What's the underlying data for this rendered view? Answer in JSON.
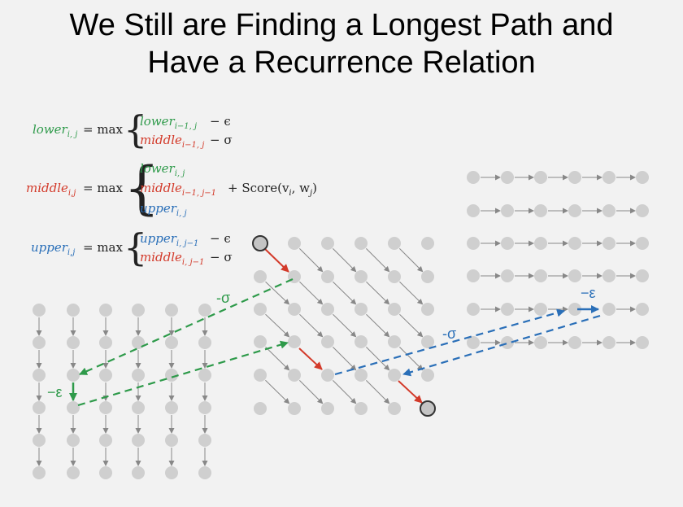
{
  "title": {
    "line1": "We Still are Finding a Longest Path and",
    "line2": "Have a Recurrence Relation"
  },
  "equations": {
    "lower": {
      "lhs": "lower",
      "lhs_sub": "i, j",
      "eq": "= max",
      "r1": "lower",
      "r1_sub": "i−1, j",
      "r1_tail": "− ϵ",
      "r2": "middle",
      "r2_sub": "i−1, j",
      "r2_tail": "− σ"
    },
    "middle": {
      "lhs": "middle",
      "lhs_sub": "i,j",
      "eq": "= max",
      "r1": "lower",
      "r1_sub": "i, j",
      "r2": "middle",
      "r2_sub": "i−1, j−1",
      "r2_tail": "+ Score(v",
      "r2_v": "i",
      "r2_mid": ", w",
      "r2_w": "j",
      "r2_end": ")",
      "r3": "upper",
      "r3_sub": "i, j"
    },
    "upper": {
      "lhs": "upper",
      "lhs_sub": "i,j",
      "eq": "= max",
      "r1": "upper",
      "r1_sub": "i, j−1",
      "r1_tail": "− ϵ",
      "r2": "middle",
      "r2_sub": "i, j−1",
      "r2_tail": "− σ"
    }
  },
  "labels": {
    "green_sigma": "-σ",
    "green_eps": "−ε",
    "blue_sigma": "-σ",
    "blue_eps": "−ε"
  },
  "colors": {
    "node": "#cfcfcf",
    "edge": "#888888",
    "green": "#2e9a4a",
    "red": "#d33a2a",
    "blue": "#2a6fb8"
  }
}
